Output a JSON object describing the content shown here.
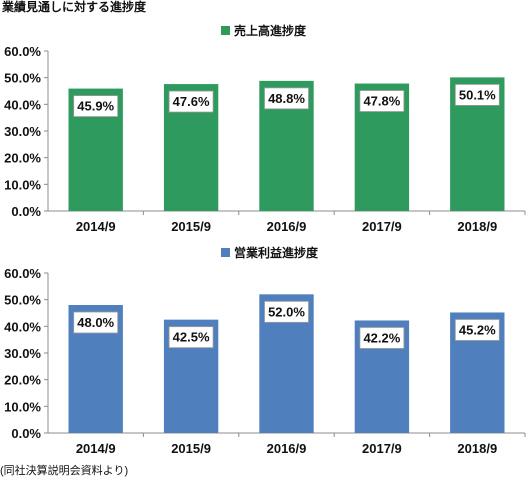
{
  "page_title": "業績見通しに対する進捗度",
  "footnote": "(同社決算説明会資料より)",
  "colors": {
    "sales": "#2e9a5d",
    "profit": "#4f80bd",
    "axis": "#8c8c8c"
  },
  "chart_data": [
    {
      "type": "bar",
      "legend_position": "top-center",
      "grid": false,
      "categories": [
        "2014/9",
        "2015/9",
        "2016/9",
        "2017/9",
        "2018/9"
      ],
      "series": [
        {
          "name": "売上高進捗度",
          "values": [
            45.9,
            47.6,
            48.8,
            47.8,
            50.1
          ],
          "labels": [
            "45.9%",
            "47.6%",
            "48.8%",
            "47.8%",
            "50.1%"
          ]
        }
      ],
      "ylim": [
        0,
        60
      ],
      "yticks": [
        "0.0%",
        "10.0%",
        "20.0%",
        "30.0%",
        "40.0%",
        "50.0%",
        "60.0%"
      ]
    },
    {
      "type": "bar",
      "legend_position": "top-center",
      "grid": false,
      "categories": [
        "2014/9",
        "2015/9",
        "2016/9",
        "2017/9",
        "2018/9"
      ],
      "series": [
        {
          "name": "営業利益進捗度",
          "values": [
            48.0,
            42.5,
            52.0,
            42.2,
            45.2
          ],
          "labels": [
            "48.0%",
            "42.5%",
            "52.0%",
            "42.2%",
            "45.2%"
          ]
        }
      ],
      "ylim": [
        0,
        60
      ],
      "yticks": [
        "0.0%",
        "10.0%",
        "20.0%",
        "30.0%",
        "40.0%",
        "50.0%",
        "60.0%"
      ]
    }
  ]
}
